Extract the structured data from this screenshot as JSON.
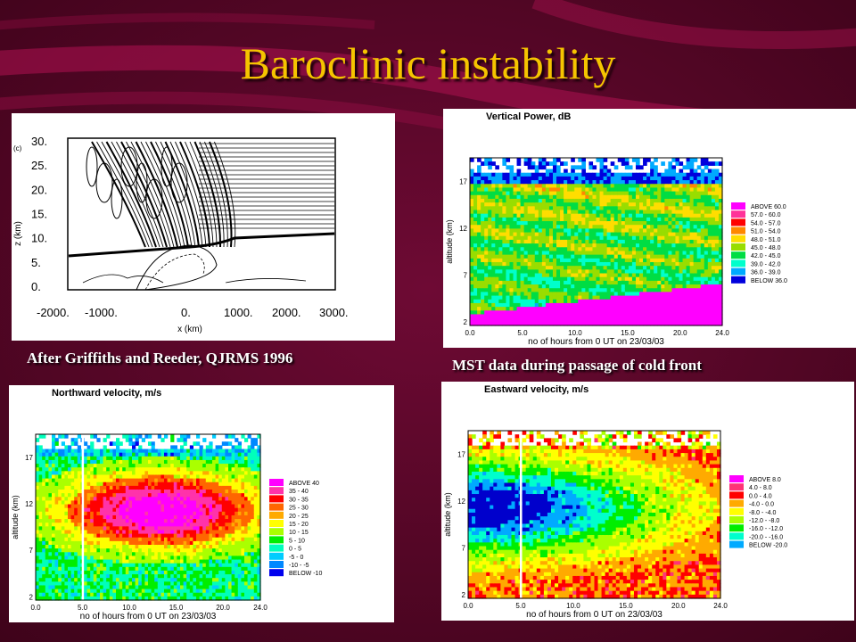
{
  "slide": {
    "title": "Baroclinic instability",
    "caption_left": "After Griffiths and Reeder, QJRMS 1996",
    "caption_right": "MST data during passage of cold front",
    "colors": {
      "background": "#5a0628",
      "stripe": "#a0104a",
      "title": "#f5c400"
    }
  },
  "model_panel": {
    "label": "(c)",
    "ylabel": "z (km)",
    "xlabel": "x (km)",
    "yticks": [
      "30.",
      "25.",
      "20.",
      "15.",
      "10.",
      "5.",
      "0."
    ],
    "xticks": [
      "-2000.",
      "-1000.",
      "0.",
      "1000.",
      "2000.",
      "3000."
    ]
  },
  "radar_panels": [
    {
      "title": "Vertical Power, dB",
      "ylabel": "altitude (km)",
      "xlabel": "no of hours from 0 UT on 23/03/03",
      "yticks": [
        "17",
        "12",
        "7",
        "2"
      ],
      "xticks": [
        "0.0",
        "5.0",
        "10.0",
        "15.0",
        "20.0",
        "24.0"
      ],
      "legend": [
        "ABOVE  60.0",
        "57.0 - 60.0",
        "54.0 - 57.0",
        "51.0 - 54.0",
        "48.0 - 51.0",
        "45.0 - 48.0",
        "42.0 - 45.0",
        "39.0 - 42.0",
        "36.0 - 39.0",
        "BELOW  36.0"
      ]
    },
    {
      "title": "Northward velocity, m/s",
      "ylabel": "altitude (km)",
      "xlabel": "no of hours from 0 UT on 23/03/03",
      "yticks": [
        "17",
        "12",
        "7",
        "2"
      ],
      "xticks": [
        "0.0",
        "5.0",
        "10.0",
        "15.0",
        "20.0",
        "24.0"
      ],
      "legend": [
        "ABOVE  40",
        "35 -  40",
        "30 -  35",
        "25 -  30",
        "20 -  25",
        "15 -  20",
        "10 -  15",
        "5 -  10",
        "0 -   5",
        "-5 -   0",
        "-10 -  -5",
        "BELOW  -10"
      ]
    },
    {
      "title": "Eastward velocity, m/s",
      "ylabel": "altitude (km)",
      "xlabel": "no of hours from 0 UT on 23/03/03",
      "yticks": [
        "17",
        "12",
        "7",
        "2"
      ],
      "xticks": [
        "0.0",
        "5.0",
        "10.0",
        "15.0",
        "20.0",
        "24.0"
      ],
      "legend": [
        "ABOVE   8.0",
        "4.0 -   8.0",
        "0.0 -   4.0",
        "-4.0 -   0.0",
        "-8.0 -  -4.0",
        "-12.0 -  -8.0",
        "-16.0 - -12.0",
        "-20.0 - -16.0",
        "BELOW  -20.0"
      ]
    }
  ]
}
